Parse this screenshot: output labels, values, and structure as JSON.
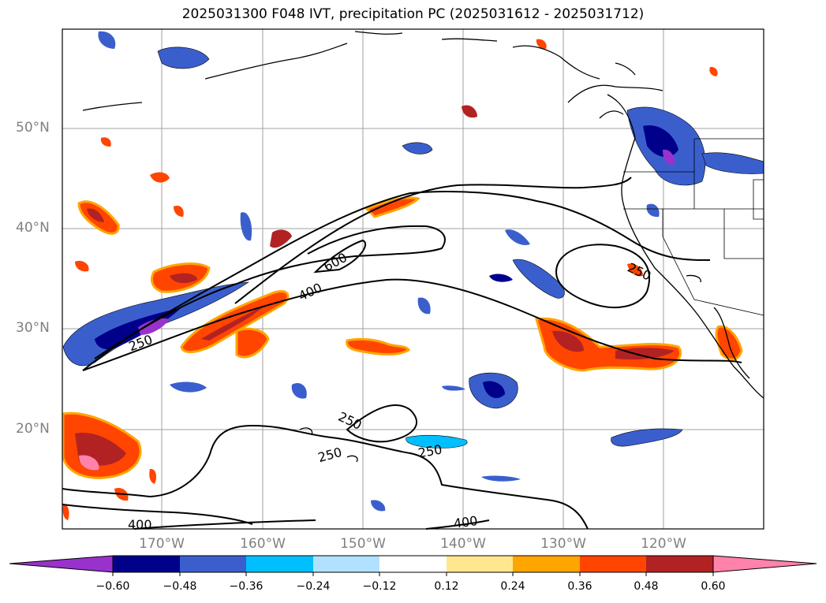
{
  "title": "2025031300 F048 IVT, precipitation PC (2025031612 - 2025031712)",
  "lat_labels": [
    "50°N",
    "40°N",
    "30°N",
    "20°N"
  ],
  "lon_labels": [
    "170°W",
    "160°W",
    "150°W",
    "140°W",
    "130°W",
    "120°W"
  ],
  "contour_labels": [
    "600",
    "400",
    "250",
    "250",
    "250",
    "250",
    "250",
    "400",
    "400"
  ],
  "colorbar": {
    "ticks": [
      "−0.60",
      "−0.48",
      "−0.36",
      "−0.24",
      "−0.12",
      "0.12",
      "0.24",
      "0.36",
      "0.48",
      "0.60"
    ],
    "colors": [
      "#9932cc",
      "#00008b",
      "#3a5fcd",
      "#00bfff",
      "#b0e2ff",
      "#ffffff",
      "#ffe78f",
      "#ffa500",
      "#ff4500",
      "#b22222",
      "#ff82ab"
    ]
  },
  "palette": {
    "neg_light": "#b0e2ff",
    "neg_mid": "#00bfff",
    "neg_strong": "#3a5fcd",
    "neg_deep": "#00008b",
    "neg_extreme": "#9932cc",
    "pos_light": "#ffe78f",
    "pos_mid": "#ffa500",
    "pos_strong": "#ff4500",
    "pos_deep": "#b22222",
    "pos_extreme": "#ff82ab"
  }
}
